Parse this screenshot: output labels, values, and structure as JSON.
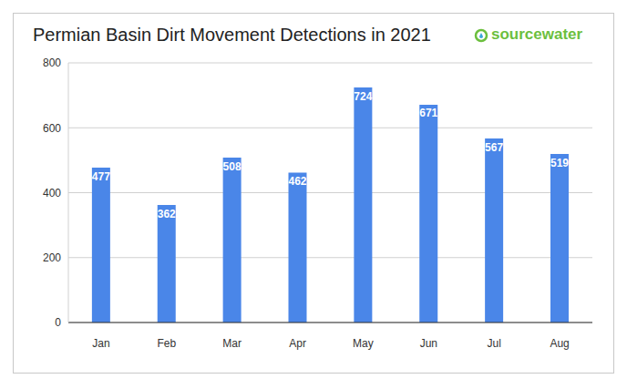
{
  "chart_data": {
    "type": "bar",
    "title": "Permian Basin Dirt Movement Detections in 2021",
    "annotations": [
      "sourcewater"
    ],
    "categories": [
      "Jan",
      "Feb",
      "Mar",
      "Apr",
      "May",
      "Jun",
      "Jul",
      "Aug"
    ],
    "values": [
      477,
      362,
      508,
      462,
      724,
      671,
      567,
      519
    ],
    "color": "#4a86e8",
    "ylim": [
      0,
      800
    ],
    "yticks": [
      0,
      200,
      400,
      600,
      800
    ],
    "grid": true,
    "data_labels": true
  }
}
